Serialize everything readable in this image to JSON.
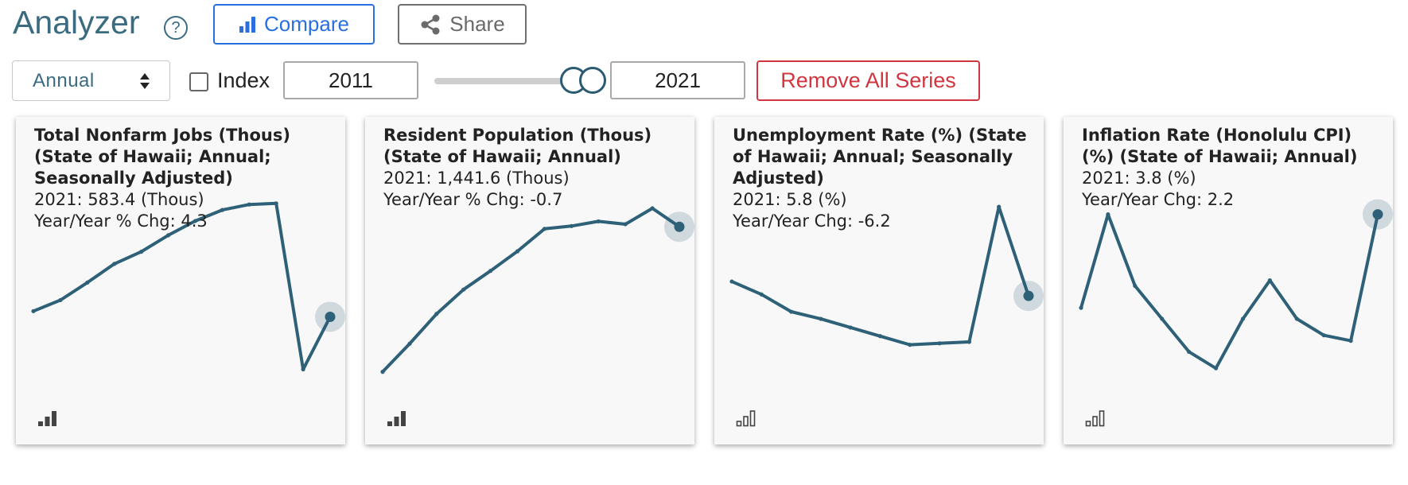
{
  "header": {
    "title": "Analyzer",
    "help_symbol": "?",
    "compare_label": "Compare",
    "share_label": "Share"
  },
  "controls": {
    "frequency": "Annual",
    "index_label": "Index",
    "index_checked": false,
    "start_year": "2011",
    "end_year": "2021",
    "remove_label": "Remove All Series"
  },
  "colors": {
    "accent": "#3a6b80",
    "primary": "#2a6fe0",
    "danger": "#d0363f",
    "line": "#2e6178"
  },
  "icons": [
    "help-icon",
    "bar-chart-icon",
    "share-icon",
    "updown-arrows-icon",
    "bars-small-icon"
  ],
  "cards": [
    {
      "title": "Total Nonfarm Jobs (Thous) (State of Hawaii; Annual; Seasonally Adjusted)",
      "value": "2021: 583.4 (Thous)",
      "change": "Year/Year % Chg: 4.3",
      "icon": "bars-filled-icon"
    },
    {
      "title": "Resident Population (Thous) (State of Hawaii; Annual)",
      "value": "2021: 1,441.6 (Thous)",
      "change": "Year/Year % Chg: -0.7",
      "icon": "bars-filled-icon"
    },
    {
      "title": "Unemployment Rate (%) (State of Hawaii; Annual; Seasonally Adjusted)",
      "value": "2021: 5.8 (%)",
      "change": "Year/Year Chg: -6.2",
      "icon": "bars-outline-icon"
    },
    {
      "title": "Inflation Rate (Honolulu CPI) (%) (State of Hawaii; Annual)",
      "value": "2021: 3.8 (%)",
      "change": "Year/Year Chg: 2.2",
      "icon": "bars-outline-icon"
    }
  ],
  "chart_data": [
    {
      "type": "line",
      "x": [
        2010,
        2011,
        2012,
        2013,
        2014,
        2015,
        2016,
        2017,
        2018,
        2019,
        2020,
        2021
      ],
      "values": [
        586.0,
        591.0,
        599.0,
        607.5,
        613.0,
        620.5,
        627.0,
        632.0,
        634.5,
        635.0,
        559.5,
        583.4
      ],
      "ylim": [
        555,
        640
      ]
    },
    {
      "type": "line",
      "x": [
        2010,
        2011,
        2012,
        2013,
        2014,
        2015,
        2016,
        2017,
        2018,
        2019,
        2020,
        2021
      ],
      "values": [
        1364.0,
        1379.0,
        1395.0,
        1408.0,
        1418.0,
        1428.5,
        1440.5,
        1442.0,
        1444.5,
        1443.0,
        1451.5,
        1441.6
      ],
      "ylim": [
        1360,
        1460
      ]
    },
    {
      "type": "line",
      "x": [
        2011,
        2012,
        2013,
        2014,
        2015,
        2016,
        2017,
        2018,
        2019,
        2020,
        2021
      ],
      "values": [
        6.8,
        5.9,
        4.7,
        4.2,
        3.6,
        3.0,
        2.4,
        2.5,
        2.6,
        12.0,
        5.8
      ],
      "ylim": [
        0,
        13
      ]
    },
    {
      "type": "line",
      "x": [
        2010,
        2011,
        2012,
        2013,
        2014,
        2015,
        2016,
        2017,
        2018,
        2019,
        2020,
        2021
      ],
      "values": [
        2.1,
        3.8,
        2.5,
        1.9,
        1.3,
        1.0,
        1.9,
        2.6,
        1.9,
        1.6,
        1.5,
        3.8
      ],
      "ylim": [
        0.8,
        4.2
      ]
    }
  ]
}
